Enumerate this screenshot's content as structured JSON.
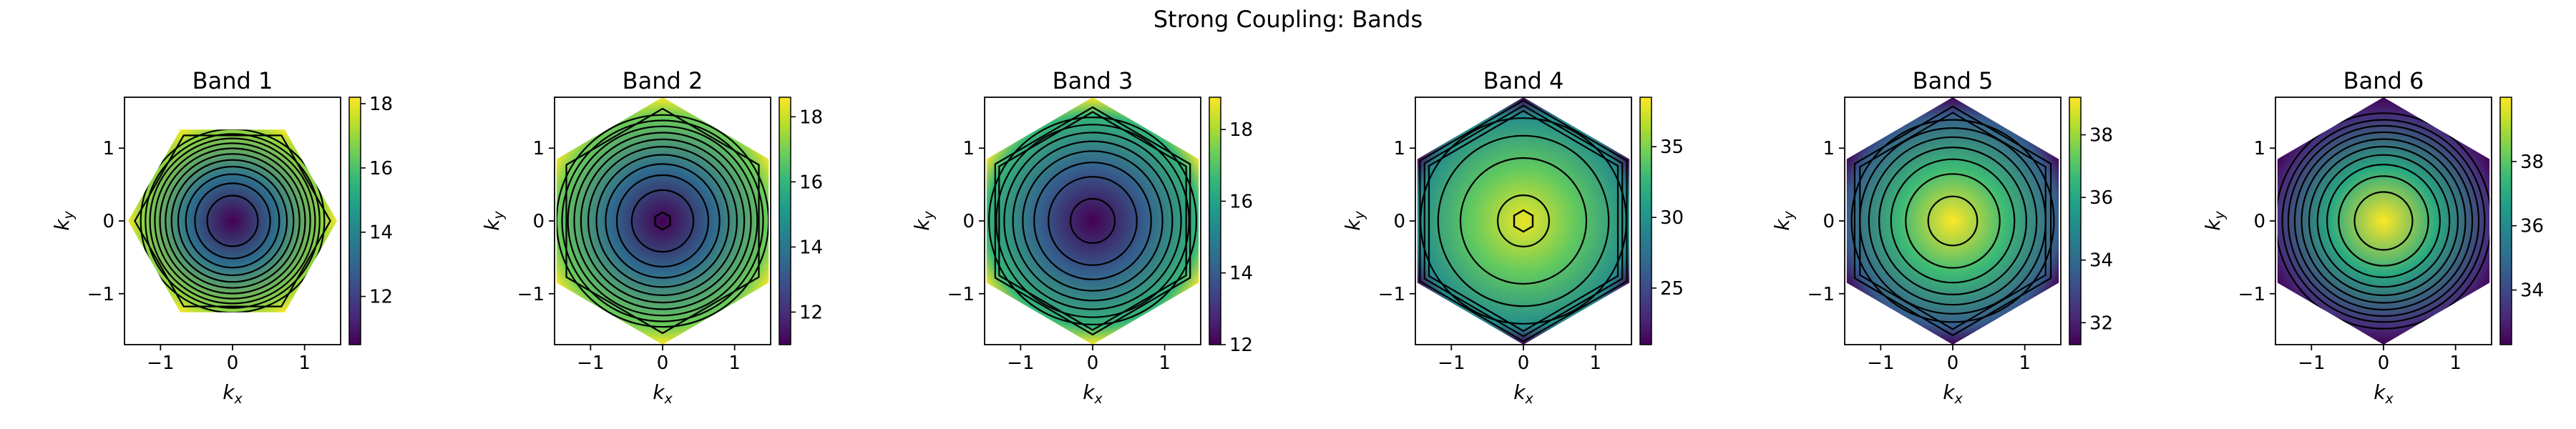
{
  "figure_title": "Strong Coupling: Bands",
  "colors": {
    "cmap": [
      "#440154",
      "#482878",
      "#3e4989",
      "#31688e",
      "#26828e",
      "#1f9e89",
      "#35b779",
      "#6ece58",
      "#b5de2b",
      "#fde725"
    ],
    "contour_line": "#000000"
  },
  "chart_data": [
    {
      "type": "heatmap",
      "title": "Band 1",
      "xlabel": "k",
      "xlabel_sub": "x",
      "ylabel": "k",
      "ylabel_sub": "y",
      "xlim": [
        -1.5,
        1.5
      ],
      "ylim": [
        -1.7,
        1.7
      ],
      "x_ticks": [
        -1,
        0,
        1
      ],
      "x_tick_labels": [
        "−1",
        "0",
        "1"
      ],
      "y_ticks": [
        -1,
        0,
        1
      ],
      "y_tick_labels": [
        "−1",
        "0",
        "1"
      ],
      "domain": "hexagonal Brillouin zone (corners at k_x=±1.45, k_y=0)",
      "value_at_center": 10.5,
      "value_at_edge": 16.9,
      "value_at_corners": 18.2,
      "colorbar_range": [
        10.5,
        18.2
      ],
      "colorbar_ticks": [
        12,
        14,
        16,
        18
      ],
      "colorbar_tick_labels": [
        "12",
        "14",
        "16",
        "18"
      ],
      "contour_levels": [
        11.0,
        11.6,
        12.2,
        12.8,
        13.4,
        14.0,
        14.6,
        15.2,
        15.8,
        16.4,
        17.0,
        17.6
      ]
    },
    {
      "type": "heatmap",
      "title": "Band 2",
      "xlabel": "k",
      "xlabel_sub": "x",
      "ylabel": "k",
      "ylabel_sub": "y",
      "xlim": [
        -1.5,
        1.5
      ],
      "ylim": [
        -1.7,
        1.7
      ],
      "x_ticks": [
        -1,
        0,
        1
      ],
      "x_tick_labels": [
        "−1",
        "0",
        "1"
      ],
      "y_ticks": [
        -1,
        0,
        1
      ],
      "y_tick_labels": [
        "−1",
        "0",
        "1"
      ],
      "domain": "hexagonal Brillouin zone (corners at k_x=0, k_y=±1.7)",
      "value_at_center": 11.0,
      "value_at_edge": 16.9,
      "value_at_corners": 18.6,
      "colorbar_range": [
        11.0,
        18.6
      ],
      "colorbar_ticks": [
        12,
        14,
        16,
        18
      ],
      "colorbar_tick_labels": [
        "12",
        "14",
        "16",
        "18"
      ],
      "contour_levels": [
        11.5,
        12.1,
        12.7,
        13.3,
        13.9,
        14.5,
        15.1,
        15.7,
        16.3,
        16.9,
        17.5
      ]
    },
    {
      "type": "heatmap",
      "title": "Band 3",
      "xlabel": "k",
      "xlabel_sub": "x",
      "ylabel": "k",
      "ylabel_sub": "y",
      "xlim": [
        -1.5,
        1.5
      ],
      "ylim": [
        -1.7,
        1.7
      ],
      "x_ticks": [
        -1,
        0,
        1
      ],
      "x_tick_labels": [
        "−1",
        "0",
        "1"
      ],
      "y_ticks": [
        -1,
        0,
        1
      ],
      "y_tick_labels": [
        "−1",
        "0",
        "1"
      ],
      "domain": "hexagonal Brillouin zone (corners at k_x=0, k_y=±1.7)",
      "value_at_center": 12.0,
      "value_at_edge": 16.6,
      "value_at_corners": 18.9,
      "colorbar_range": [
        12.0,
        18.9
      ],
      "colorbar_ticks": [
        12,
        14,
        16,
        18
      ],
      "colorbar_tick_labels": [
        "12",
        "14",
        "16",
        "18"
      ],
      "contour_levels": [
        12.2,
        12.8,
        13.4,
        14.0,
        14.6,
        15.2,
        15.8,
        16.4,
        17.0,
        17.6
      ]
    },
    {
      "type": "heatmap",
      "title": "Band 4",
      "xlabel": "k",
      "xlabel_sub": "x",
      "ylabel": "k",
      "ylabel_sub": "y",
      "xlim": [
        -1.5,
        1.5
      ],
      "ylim": [
        -1.7,
        1.7
      ],
      "x_ticks": [
        -1,
        0,
        1
      ],
      "x_tick_labels": [
        "−1",
        "0",
        "1"
      ],
      "y_ticks": [
        -1,
        0,
        1
      ],
      "y_tick_labels": [
        "−1",
        "0",
        "1"
      ],
      "domain": "hexagonal Brillouin zone (corners at k_x=0, k_y=±1.7)",
      "value_at_center": 38.0,
      "value_at_edge": 29.5,
      "value_at_corners": 21.0,
      "colorbar_range": [
        21.0,
        38.5
      ],
      "colorbar_ticks": [
        25,
        30,
        35
      ],
      "colorbar_tick_labels": [
        "25",
        "30",
        "35"
      ],
      "contour_levels": [
        22.5,
        25.0,
        27.5,
        30.0,
        32.5,
        35.0,
        37.5
      ]
    },
    {
      "type": "heatmap",
      "title": "Band 5",
      "xlabel": "k",
      "xlabel_sub": "x",
      "ylabel": "k",
      "ylabel_sub": "y",
      "xlim": [
        -1.5,
        1.5
      ],
      "ylim": [
        -1.7,
        1.7
      ],
      "x_ticks": [
        -1,
        0,
        1
      ],
      "x_tick_labels": [
        "−1",
        "0",
        "1"
      ],
      "y_ticks": [
        -1,
        0,
        1
      ],
      "y_tick_labels": [
        "−1",
        "0",
        "1"
      ],
      "domain": "hexagonal Brillouin zone (corners at k_x=0, k_y=±1.7)",
      "value_at_center": 39.2,
      "value_at_edge": 33.6,
      "value_at_corners": 31.3,
      "colorbar_range": [
        31.3,
        39.2
      ],
      "colorbar_ticks": [
        32,
        34,
        36,
        38
      ],
      "colorbar_tick_labels": [
        "32",
        "34",
        "36",
        "38"
      ],
      "contour_levels": [
        32.5,
        33.3,
        34.1,
        34.9,
        35.7,
        36.5,
        37.3,
        38.1,
        38.9
      ]
    },
    {
      "type": "heatmap",
      "title": "Band 6",
      "xlabel": "k",
      "xlabel_sub": "x",
      "ylabel": "k",
      "ylabel_sub": "y",
      "xlim": [
        -1.5,
        1.5
      ],
      "ylim": [
        -1.7,
        1.7
      ],
      "x_ticks": [
        -1,
        0,
        1
      ],
      "x_tick_labels": [
        "−1",
        "0",
        "1"
      ],
      "y_ticks": [
        -1,
        0,
        1
      ],
      "y_tick_labels": [
        "−1",
        "0",
        "1"
      ],
      "domain": "hexagonal Brillouin zone (corners at k_x=0, k_y=±1.7)",
      "value_at_center": 40.0,
      "value_at_edge": 33.3,
      "value_at_corners": 32.3,
      "colorbar_range": [
        32.3,
        40.0
      ],
      "colorbar_ticks": [
        34,
        36,
        38
      ],
      "colorbar_tick_labels": [
        "34",
        "36",
        "38"
      ],
      "contour_levels": [
        33.2,
        33.9,
        34.6,
        35.3,
        36.0,
        36.7,
        37.4,
        38.1,
        38.8,
        39.5
      ]
    }
  ]
}
